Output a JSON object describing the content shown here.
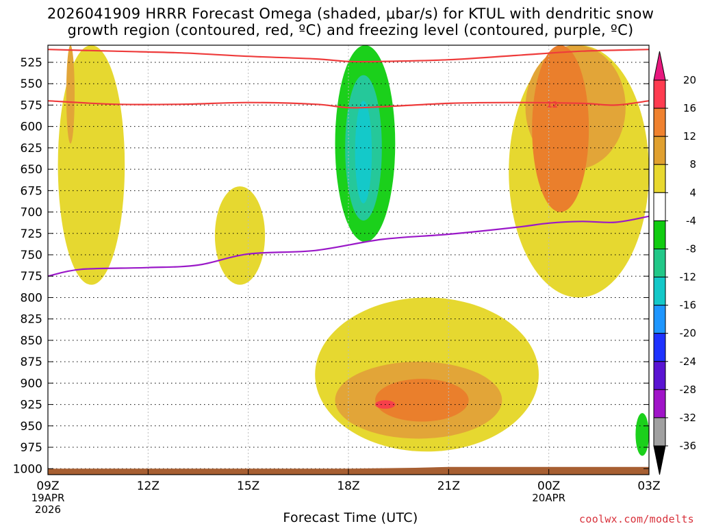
{
  "title_line1": "2026041909 HRRR Forecast Omega (shaded, μbar/s) for KTUL with dendritic snow",
  "title_line2": "growth region (contoured, red, ºC) and freezing level (contoured, purple, ºC)",
  "credit": "coolwx.com/modelts",
  "chart_data": {
    "type": "time-height cross section",
    "title": "2026041909 HRRR Forecast Omega (shaded, μbar/s) for KTUL with dendritic snow growth region (contoured, red, ºC) and freezing level (contoured, purple, ºC)",
    "xlabel": "Forecast Time (UTC)",
    "ylabel": "",
    "x_ticks": [
      "09Z",
      "12Z",
      "15Z",
      "18Z",
      "21Z",
      "00Z",
      "03Z"
    ],
    "x_hours": [
      0,
      3,
      6,
      9,
      12,
      15,
      18
    ],
    "x_date_labels": [
      {
        "hour": 0,
        "lines": [
          "19APR",
          "2026"
        ]
      },
      {
        "hour": 15,
        "lines": [
          "20APR"
        ]
      }
    ],
    "y_ticks": [
      525,
      550,
      575,
      600,
      625,
      650,
      675,
      700,
      725,
      750,
      775,
      800,
      825,
      850,
      875,
      900,
      925,
      950,
      975,
      1000
    ],
    "ylim": [
      505,
      1007
    ],
    "colorbar_levels": [
      20,
      16,
      12,
      8,
      4,
      -4,
      -8,
      -12,
      -16,
      -20,
      -24,
      -28,
      -32,
      -36
    ],
    "colorbar_colors": [
      "#ff3c50",
      "#f08230",
      "#e0a030",
      "#e8d830",
      "#ffffff",
      "#11cc11",
      "#22c888",
      "#14c8c8",
      "#1e96ff",
      "#1e32ff",
      "#5a14d2",
      "#a014c8",
      "#a0a0a0"
    ],
    "omega_colors": {
      "4to8": "#e6d830",
      "8to12": "#e2a538",
      "12to16": "#ea7f2c",
      "16to20": "#f7404a",
      "m8tom4": "#1bd01b",
      "m12tom8": "#25c89a",
      "m16tom12": "#14c9c9"
    },
    "omega_regions": [
      {
        "level": "4to8",
        "hours": [
          0.3,
          2.3
        ],
        "pressure": [
          505,
          785
        ]
      },
      {
        "level": "8to12",
        "hours": [
          0.55,
          0.8
        ],
        "pressure": [
          505,
          620
        ]
      },
      {
        "level": "4to8",
        "hours": [
          5.0,
          6.5
        ],
        "pressure": [
          670,
          785
        ]
      },
      {
        "level": "4to8",
        "hours": [
          8.0,
          14.7
        ],
        "pressure": [
          800,
          980
        ]
      },
      {
        "level": "8to12",
        "hours": [
          8.6,
          13.6
        ],
        "pressure": [
          875,
          965
        ]
      },
      {
        "level": "12to16",
        "hours": [
          9.8,
          12.6
        ],
        "pressure": [
          895,
          945
        ]
      },
      {
        "level": "16to20",
        "hours": [
          9.8,
          10.4
        ],
        "pressure": [
          920,
          930
        ]
      },
      {
        "level": "4to8",
        "hours": [
          13.8,
          18.0
        ],
        "pressure": [
          505,
          800
        ]
      },
      {
        "level": "8to12",
        "hours": [
          14.3,
          17.3
        ],
        "pressure": [
          505,
          650
        ]
      },
      {
        "level": "12to16",
        "hours": [
          14.5,
          16.2
        ],
        "pressure": [
          505,
          700
        ]
      },
      {
        "level": "m8tom4",
        "hours": [
          8.6,
          10.4
        ],
        "pressure": [
          505,
          735
        ]
      },
      {
        "level": "m12tom8",
        "hours": [
          8.9,
          10.0
        ],
        "pressure": [
          540,
          710
        ]
      },
      {
        "level": "m16tom12",
        "hours": [
          9.2,
          9.7
        ],
        "pressure": [
          570,
          690
        ]
      },
      {
        "level": "m8tom4",
        "hours": [
          17.6,
          18.0
        ],
        "pressure": [
          935,
          985
        ]
      }
    ],
    "dendritic_contours": {
      "color": "#ee3b3b",
      "label": "12",
      "upper_line": {
        "hours": [
          0,
          2,
          4,
          6,
          8,
          9,
          10,
          12,
          14,
          16,
          18
        ],
        "pressure": [
          510,
          512,
          514,
          518,
          521,
          524,
          524,
          522,
          517,
          512,
          510
        ]
      },
      "lower_line": {
        "hours": [
          0,
          2,
          4,
          6,
          8,
          9,
          10,
          12,
          14,
          16,
          17,
          18
        ],
        "pressure": [
          570,
          574,
          574,
          572,
          574,
          578,
          577,
          573,
          572,
          573,
          575,
          570
        ]
      }
    },
    "freezing_level": {
      "color": "#9a18c8",
      "hours": [
        0,
        1,
        3,
        4.5,
        6,
        8,
        10,
        12,
        14,
        15,
        16,
        17,
        18
      ],
      "pressure": [
        775,
        767,
        765,
        762,
        749,
        745,
        732,
        726,
        718,
        713,
        711,
        712,
        705
      ]
    },
    "terrain": {
      "color": "#a75f32",
      "hours": [
        0,
        9,
        11,
        12,
        18
      ],
      "pressure": [
        1000,
        1000,
        999,
        998,
        998
      ]
    }
  }
}
